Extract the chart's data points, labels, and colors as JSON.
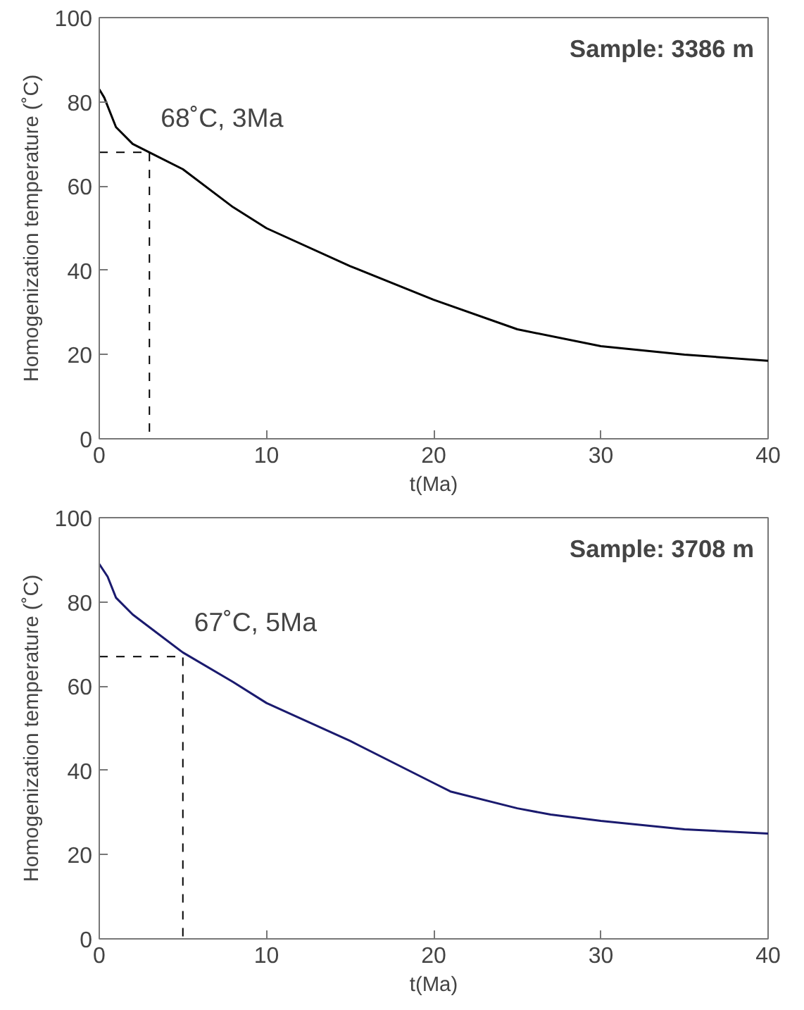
{
  "chart_data": [
    {
      "type": "line",
      "xlabel": "t(Ma)",
      "ylabel": "Homogenization temperature (˚C)",
      "xlim": [
        0,
        40
      ],
      "ylim": [
        0,
        100
      ],
      "xticks": [
        0,
        10,
        20,
        30,
        40
      ],
      "yticks": [
        0,
        20,
        40,
        60,
        80,
        100
      ],
      "grid": false,
      "marker": "none",
      "line_style": "solid",
      "annotations": [
        "Sample: 3386 m",
        {
          "text": "68˚C, 3Ma",
          "x": 3,
          "y": 68
        }
      ],
      "series": [
        {
          "type": "line",
          "line_style": "dashed",
          "color": "#000000",
          "x": [
            0,
            3,
            3
          ],
          "values": [
            68,
            68,
            0
          ]
        },
        {
          "color": "#000000",
          "x": [
            0,
            0.3,
            1,
            2,
            3,
            5,
            8,
            10,
            15,
            20,
            25,
            30,
            35,
            40
          ],
          "values": [
            83,
            81,
            74,
            70,
            68,
            64,
            55,
            50,
            41,
            33,
            26,
            22,
            20,
            18.5
          ]
        }
      ]
    },
    {
      "type": "line",
      "xlabel": "t(Ma)",
      "ylabel": "Homogenization temperature (˚C)",
      "xlim": [
        0,
        40
      ],
      "ylim": [
        0,
        100
      ],
      "xticks": [
        0,
        10,
        20,
        30,
        40
      ],
      "yticks": [
        0,
        20,
        40,
        60,
        80,
        100
      ],
      "grid": false,
      "marker": "none",
      "line_style": "solid",
      "annotations": [
        "Sample: 3708 m",
        {
          "text": "67˚C, 5Ma",
          "x": 5,
          "y": 67
        }
      ],
      "series": [
        {
          "type": "line",
          "line_style": "dashed",
          "color": "#000000",
          "x": [
            0,
            5,
            5
          ],
          "values": [
            67,
            67,
            0
          ]
        },
        {
          "color": "#1a1a6e",
          "x": [
            0,
            0.5,
            1,
            2,
            3,
            5,
            8,
            10,
            15,
            20,
            21,
            25,
            27,
            30,
            35,
            40
          ],
          "values": [
            89,
            86,
            81,
            77,
            74,
            68,
            61,
            56,
            47,
            37,
            35,
            31,
            29.5,
            28,
            26,
            25
          ]
        }
      ]
    }
  ]
}
